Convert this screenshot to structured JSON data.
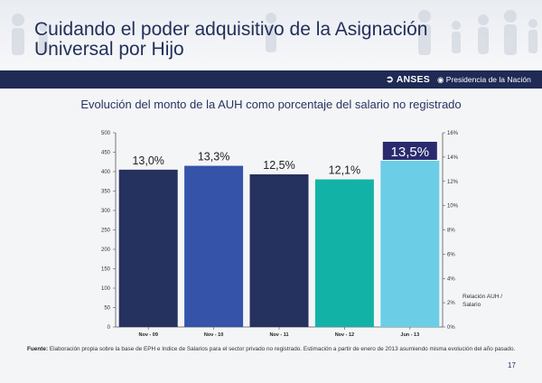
{
  "header": {
    "title_line1": "Cuidando el poder adquisitivo de la Asignación",
    "title_line2": "Universal por Hijo",
    "anses_label": "ANSES",
    "presidencia_label": "Presidencia de la Nación"
  },
  "chart_data": {
    "type": "bar",
    "title": "Evolución del monto de la AUH como porcentaje del salario no registrado",
    "categories": [
      "Nov - 09",
      "Nov - 10",
      "Nov - 11",
      "Nov - 12",
      "Jun - 13"
    ],
    "values": [
      405,
      415,
      393,
      380,
      428
    ],
    "data_labels": [
      "13,0%",
      "13,3%",
      "12,5%",
      "12,1%",
      "13,5%"
    ],
    "bar_colors": [
      "#25315e",
      "#3553a8",
      "#25315e",
      "#12b3a6",
      "#6ccde6"
    ],
    "highlight_color": "#2a2a6e",
    "ylim": [
      0,
      500
    ],
    "yticks": [
      "0",
      "50",
      "100",
      "150",
      "200",
      "250",
      "300",
      "350",
      "400",
      "450",
      "500"
    ],
    "y2ticks": [
      "0%",
      "2%",
      "4%",
      "6%",
      "8%",
      "10%",
      "12%",
      "14%",
      "16%"
    ],
    "y2label": "Relación AUH / Salario",
    "y2label_line1": "Relación AUH /",
    "y2label_line2": "Salario"
  },
  "footnote": {
    "label": "Fuente:",
    "text": " Elaboración propia sobre la base de EPH e Indice de Salarios para el sector privado no registrado. Estimación a partir de enero de 2013 asumiendo misma evolución del año pasado."
  },
  "page_number": "17"
}
